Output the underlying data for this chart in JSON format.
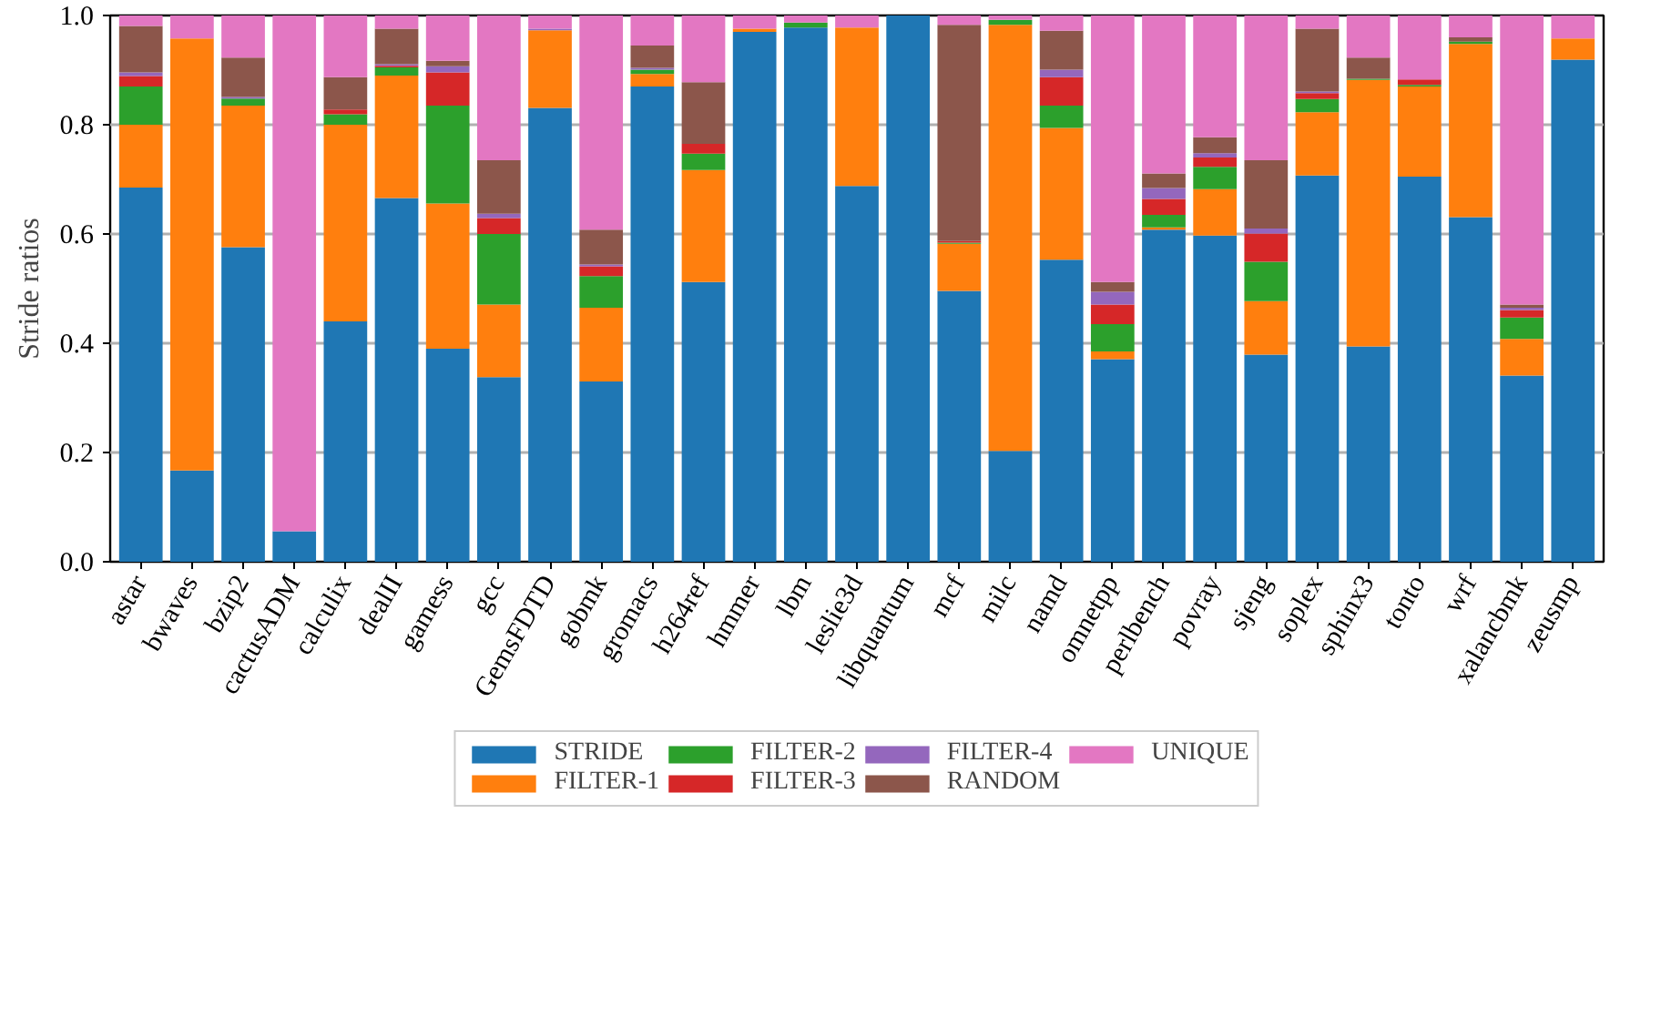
{
  "chart_data": {
    "type": "bar",
    "stacked": true,
    "ylabel": "Stride ratios",
    "ylim": [
      0,
      1
    ],
    "yticks": [
      {
        "value": 0,
        "label": "0.0"
      },
      {
        "value": 0.2,
        "label": "0.2"
      },
      {
        "value": 0.4,
        "label": "0.4"
      },
      {
        "value": 0.6,
        "label": "0.6"
      },
      {
        "value": 0.8,
        "label": "0.8"
      },
      {
        "value": 1,
        "label": "1.0"
      }
    ],
    "grid": "y",
    "legend": "bottom",
    "categories": [
      "astar",
      "bwaves",
      "bzip2",
      "cactusADM",
      "calculix",
      "dealII",
      "gamess",
      "gcc",
      "GemsFDTD",
      "gobmk",
      "gromacs",
      "h264ref",
      "hmmer",
      "lbm",
      "leslie3d",
      "libquantum",
      "mcf",
      "milc",
      "namd",
      "omnetpp",
      "perlbench",
      "povray",
      "sjeng",
      "soplex",
      "sphinx3",
      "tonto",
      "wrf",
      "xalancbmk",
      "zeusmp"
    ],
    "series": [
      {
        "name": "STRIDE",
        "color": "#1f77b4",
        "values": [
          0.685,
          0.167,
          0.576,
          0.056,
          0.44,
          0.666,
          0.39,
          0.338,
          0.831,
          0.33,
          0.87,
          0.512,
          0.97,
          0.978,
          0.688,
          1.0,
          0.496,
          0.203,
          0.553,
          0.371,
          0.608,
          0.597,
          0.379,
          0.707,
          0.394,
          0.705,
          0.631,
          0.341,
          0.919
        ]
      },
      {
        "name": "FILTER-1",
        "color": "#ff7f0e",
        "values": [
          0.115,
          0.791,
          0.259,
          0,
          0.36,
          0.224,
          0.266,
          0.133,
          0.142,
          0.135,
          0.023,
          0.205,
          0.006,
          0,
          0.29,
          0,
          0.086,
          0.78,
          0.241,
          0.014,
          0.004,
          0.085,
          0.098,
          0.116,
          0.488,
          0.165,
          0.317,
          0.067,
          0.039
        ]
      },
      {
        "name": "FILTER-2",
        "color": "#2ca02c",
        "values": [
          0.07,
          0,
          0.013,
          0,
          0.019,
          0.015,
          0.179,
          0.129,
          0,
          0.058,
          0.008,
          0.03,
          0,
          0.009,
          0,
          0,
          0.002,
          0.009,
          0.041,
          0.05,
          0.023,
          0.041,
          0.072,
          0.024,
          0.002,
          0.003,
          0.004,
          0.039,
          0
        ]
      },
      {
        "name": "FILTER-3",
        "color": "#d62728",
        "values": [
          0.019,
          0,
          0,
          0,
          0.009,
          0.003,
          0.061,
          0.029,
          0,
          0.018,
          0,
          0.018,
          0,
          0,
          0,
          0,
          0.003,
          0,
          0.052,
          0.036,
          0.029,
          0.017,
          0.052,
          0.011,
          0,
          0.01,
          0,
          0.014,
          0
        ]
      },
      {
        "name": "FILTER-4",
        "color": "#9467bd",
        "values": [
          0.007,
          0,
          0.003,
          0,
          0,
          0.003,
          0.011,
          0.008,
          0.003,
          0.003,
          0.003,
          0,
          0,
          0,
          0,
          0,
          0,
          0,
          0.014,
          0.023,
          0.02,
          0.008,
          0.009,
          0.003,
          0,
          0,
          0,
          0.004,
          0
        ]
      },
      {
        "name": "RANDOM",
        "color": "#8c564b",
        "values": [
          0.085,
          0,
          0.072,
          0,
          0.059,
          0.065,
          0.01,
          0.098,
          0,
          0.064,
          0.041,
          0.113,
          0,
          0,
          0,
          0,
          0.396,
          0,
          0.071,
          0.018,
          0.027,
          0.029,
          0.125,
          0.115,
          0.039,
          0,
          0.008,
          0.006,
          0
        ]
      },
      {
        "name": "UNIQUE",
        "color": "#e377c2",
        "values": [
          0.019,
          0.042,
          0.077,
          0.944,
          0.113,
          0.024,
          0.083,
          0.265,
          0.024,
          0.392,
          0.055,
          0.122,
          0.024,
          0.013,
          0.022,
          0,
          0.017,
          0.008,
          0.028,
          0.488,
          0.289,
          0.223,
          0.265,
          0.024,
          0.077,
          0.117,
          0.04,
          0.529,
          0.042
        ]
      }
    ]
  }
}
